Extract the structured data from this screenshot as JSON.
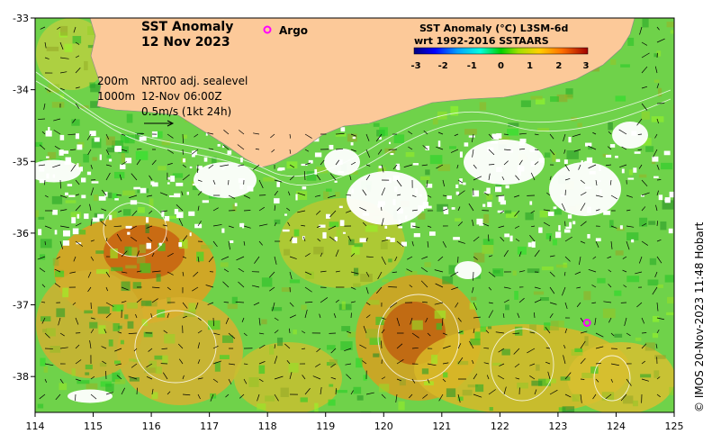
{
  "chart_data": {
    "type": "heatmap",
    "title": "SST Anomaly",
    "date": "12 Nov 2023",
    "x_ticks": [
      114,
      115,
      116,
      117,
      118,
      119,
      120,
      121,
      122,
      123,
      124,
      125
    ],
    "y_ticks": [
      -33,
      -34,
      -35,
      -36,
      -37,
      -38
    ],
    "xlim": [
      114,
      125
    ],
    "ylim": [
      -38.5,
      -33
    ],
    "legend": {
      "argo_label": "Argo",
      "argo_color": "#ff00ff"
    },
    "colorbar": {
      "title_line1": "SST Anomaly (°C) L3SM-6d",
      "title_line2": "wrt 1992-2016 SSTAARS",
      "ticks": [
        "-3",
        "-2",
        "-1",
        "0",
        "1",
        "2",
        "3"
      ],
      "range": [
        -3,
        3
      ]
    },
    "annotations": {
      "contour_200": "200m",
      "contour_1000": "1000m",
      "sealevel": "NRT00 adj. sealevel",
      "time": "12-Nov 06:00Z",
      "scale": "0.5m/s (1kt 24h)"
    },
    "argo_floats": [
      {
        "lon": 123.5,
        "lat": -37.25
      }
    ],
    "colors": {
      "land": "#fcc999",
      "no_data": "#ffffff",
      "contour": "#ffffff"
    }
  },
  "credit": "© IMOS 20-Nov-2023 11:48 Hobart"
}
